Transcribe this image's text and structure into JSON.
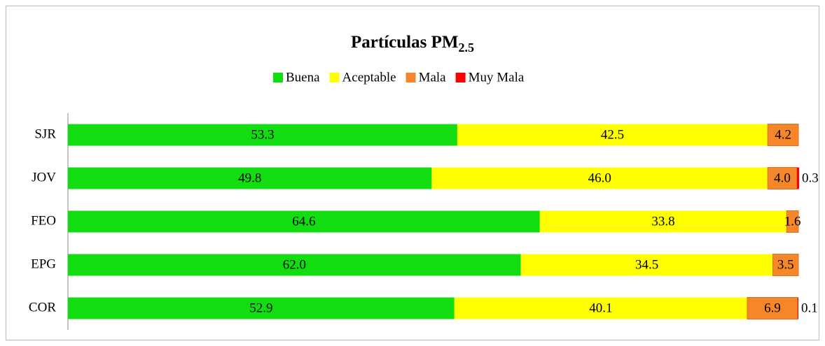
{
  "chart_data": {
    "type": "stacked_barh",
    "title": "Partículas PM",
    "title_subscript": "2.5",
    "categories": [
      "SJR",
      "JOV",
      "FEO",
      "EPG",
      "COR"
    ],
    "series": [
      {
        "name": "Buena",
        "color": "#11dd11",
        "values": [
          53.3,
          49.8,
          64.6,
          62.0,
          52.9
        ],
        "value_labels": [
          "53.3",
          "49.8",
          "64.6",
          "62.0",
          "52.9"
        ]
      },
      {
        "name": "Aceptable",
        "color": "#ffff00",
        "values": [
          42.5,
          46.0,
          33.8,
          34.5,
          40.1
        ],
        "value_labels": [
          "42.5",
          "46.0",
          "33.8",
          "34.5",
          "40.1"
        ]
      },
      {
        "name": "Mala",
        "color": "#f5862a",
        "values": [
          4.2,
          4.0,
          1.6,
          3.5,
          6.9
        ],
        "value_labels": [
          "4.2",
          "4.0",
          "1.6",
          "3.5",
          "6.9"
        ]
      },
      {
        "name": "Muy Mala",
        "color": "#ff0000",
        "values": [
          null,
          0.3,
          null,
          null,
          0.1
        ],
        "value_labels": [
          null,
          "0.3",
          null,
          null,
          "0.1"
        ]
      }
    ],
    "xlim": [
      0,
      100
    ],
    "legend": "top"
  }
}
